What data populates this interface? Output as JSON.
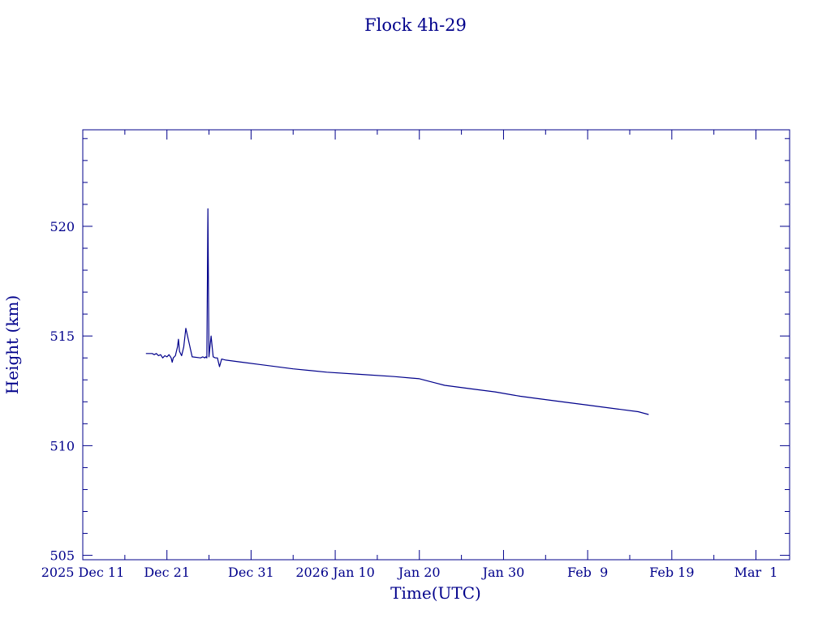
{
  "colors": {
    "foreground": "#00008b",
    "background": "#ffffff"
  },
  "chart_data": {
    "type": "line",
    "title": "Flock 4h-29",
    "xlabel": "Time(UTC)",
    "ylabel": "Height (km)",
    "grid": false,
    "legend": "none",
    "x_scale": "date",
    "xlim": [
      "2025-12-11",
      "2026-03-05"
    ],
    "ylim": [
      504.8,
      524.4
    ],
    "yticks": [
      505,
      510,
      515,
      520
    ],
    "ytick_labels": [
      "505",
      "510",
      "515",
      "520"
    ],
    "ytick_minor_step": 1,
    "xticks": [
      "2025-12-11",
      "2025-12-21",
      "2025-12-31",
      "2026-01-10",
      "2026-01-20",
      "2026-01-30",
      "2026-02-09",
      "2026-02-19",
      "2026-03-01"
    ],
    "xtick_labels": [
      "2025 Dec 11",
      "Dec 21",
      "Dec 31",
      "2026 Jan 10",
      "Jan 20",
      "Jan 30",
      "Feb  9",
      "Feb 19",
      "Mar  1"
    ],
    "xtick_minor_days": 5,
    "series": [
      {
        "x": [
          "2025-12-18T12:00",
          "2025-12-19T06:00",
          "2025-12-19T12:00",
          "2025-12-19T18:00",
          "2025-12-20T00:00",
          "2025-12-20T06:00",
          "2025-12-20T12:00",
          "2025-12-20T18:00",
          "2025-12-21T00:00",
          "2025-12-21T06:00",
          "2025-12-21T12:00",
          "2025-12-21T15:00",
          "2025-12-21T18:00",
          "2025-12-22T00:00",
          "2025-12-22T06:00",
          "2025-12-22T09:00",
          "2025-12-22T12:00",
          "2025-12-22T18:00",
          "2025-12-23T00:00",
          "2025-12-23T06:00",
          "2025-12-24T00:00",
          "2025-12-25T00:00",
          "2025-12-25T06:00",
          "2025-12-25T12:00",
          "2025-12-25T15:00",
          "2025-12-25T18:00",
          "2025-12-25T21:00",
          "2025-12-26T00:00",
          "2025-12-26T06:00",
          "2025-12-26T12:00",
          "2025-12-26T18:00",
          "2025-12-27T00:00",
          "2025-12-27T06:00",
          "2025-12-27T12:00",
          "2025-12-28T00:00",
          "2025-12-30T00:00",
          "2026-01-01T00:00",
          "2026-01-05T00:00",
          "2026-01-09T00:00",
          "2026-01-13T00:00",
          "2026-01-17T00:00",
          "2026-01-20T00:00",
          "2026-01-22T00:00",
          "2026-01-23T00:00",
          "2026-01-26T00:00",
          "2026-01-29T00:00",
          "2026-02-01T00:00",
          "2026-02-05T00:00",
          "2026-02-09T00:00",
          "2026-02-13T00:00",
          "2026-02-15T00:00",
          "2026-02-16T06:00"
        ],
        "y": [
          514.2,
          514.2,
          514.15,
          514.2,
          514.1,
          514.15,
          514.0,
          514.1,
          514.05,
          514.15,
          514.0,
          513.8,
          514.0,
          514.1,
          514.5,
          514.85,
          514.3,
          514.1,
          514.5,
          515.35,
          514.05,
          514.0,
          514.05,
          514.0,
          514.05,
          514.0,
          520.8,
          514.05,
          515.0,
          514.05,
          514.0,
          514.0,
          513.6,
          513.95,
          513.9,
          513.8,
          513.7,
          513.5,
          513.35,
          513.25,
          513.15,
          513.05,
          512.85,
          512.75,
          512.6,
          512.45,
          512.25,
          512.05,
          511.85,
          511.65,
          511.55,
          511.42
        ]
      }
    ]
  }
}
